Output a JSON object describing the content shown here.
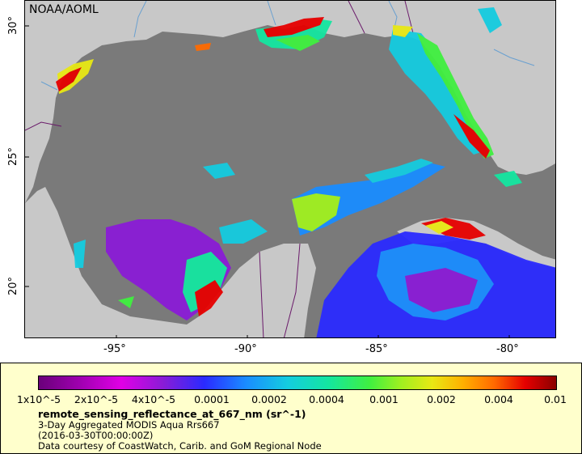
{
  "map": {
    "attribution": "NOAA/AOML",
    "lat_ticks": [
      "30°",
      "25°",
      "20°"
    ],
    "lon_ticks": [
      "-95°",
      "-90°",
      "-85°",
      "-80°"
    ],
    "colors": {
      "ocean_nodata": "#7a7a7a",
      "land": "#c8c8c8",
      "rivers": "#6aa0d0",
      "borders": "#6a1a6a"
    }
  },
  "legend": {
    "colorbar_labels": [
      "1x10^-5",
      "2x10^-5",
      "4x10^-5",
      "0.0001",
      "0.0002",
      "0.0004",
      "0.001",
      "0.002",
      "0.004",
      "0.01"
    ],
    "variable": "remote_sensing_reflectance_at_667_nm (sr^-1)",
    "product": "3-Day Aggregated MODIS Aqua Rrs667",
    "time": "(2016-03-30T00:00:00Z)",
    "credit": "Data courtesy of CoastWatch, Carib. and GoM Regional Node",
    "background": "#ffffcc"
  }
}
